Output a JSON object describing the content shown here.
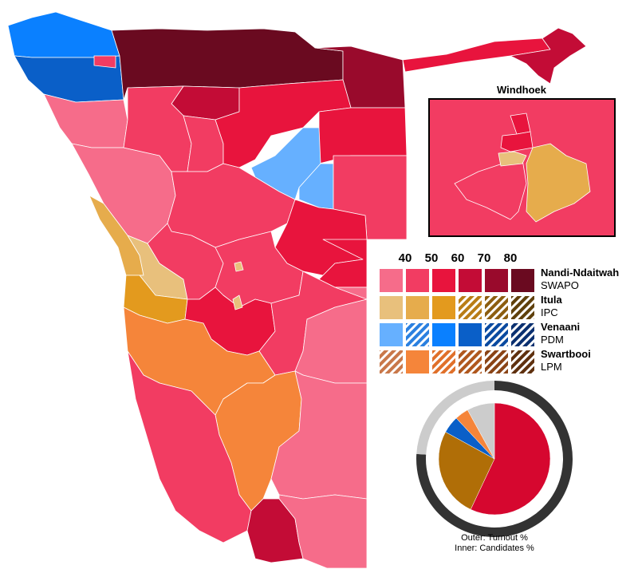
{
  "inset": {
    "title": "Windhoek"
  },
  "legend": {
    "thresholds": [
      "40",
      "50",
      "60",
      "70",
      "80"
    ],
    "rows": [
      {
        "candidate": "Nandi-Ndaitwah",
        "party": "SWAPO",
        "colors": [
          "#f66c8a",
          "#f23c62",
          "#e8143d",
          "#c30c36",
          "#990a2c",
          "#6a0a20"
        ],
        "hatched": [
          false,
          false,
          false,
          false,
          false,
          false
        ]
      },
      {
        "candidate": "Itula",
        "party": "IPC",
        "colors": [
          "#e8c07c",
          "#e6ac4c",
          "#e39a1e",
          "#b97d16",
          "#8c5e10",
          "#5f400b"
        ],
        "hatched": [
          false,
          false,
          false,
          true,
          true,
          true
        ]
      },
      {
        "candidate": "Venaani",
        "party": "PDM",
        "colors": [
          "#66b0ff",
          "#2a80e0",
          "#0a80ff",
          "#0a5fc8",
          "#0a4aa0",
          "#0a3070"
        ],
        "hatched": [
          false,
          true,
          false,
          false,
          true,
          true
        ]
      },
      {
        "candidate": "Swartbooi",
        "party": "LPM",
        "colors": [
          "#c9784a",
          "#f5853a",
          "#e0702a",
          "#b0581e",
          "#8a4416",
          "#5f300e"
        ],
        "hatched": [
          true,
          false,
          true,
          true,
          true,
          true
        ]
      }
    ]
  },
  "pie": {
    "turnout_percent": 76,
    "candidates": [
      {
        "name": "Nandi-Ndaitwah",
        "percent": 57,
        "color": "#d6072f"
      },
      {
        "name": "Itula",
        "percent": 26,
        "color": "#b06e07"
      },
      {
        "name": "Venaani",
        "percent": 5,
        "color": "#0a5fc8"
      },
      {
        "name": "Swartbooi",
        "percent": 4,
        "color": "#f5853a"
      },
      {
        "name": "Others",
        "percent": 8,
        "color": "#cccccc"
      }
    ],
    "colors": {
      "turnout": "#333333",
      "abstain": "#cccccc"
    },
    "caption_outer": "Outer: Turnout %",
    "caption_inner": "Inner: Candidates %"
  }
}
